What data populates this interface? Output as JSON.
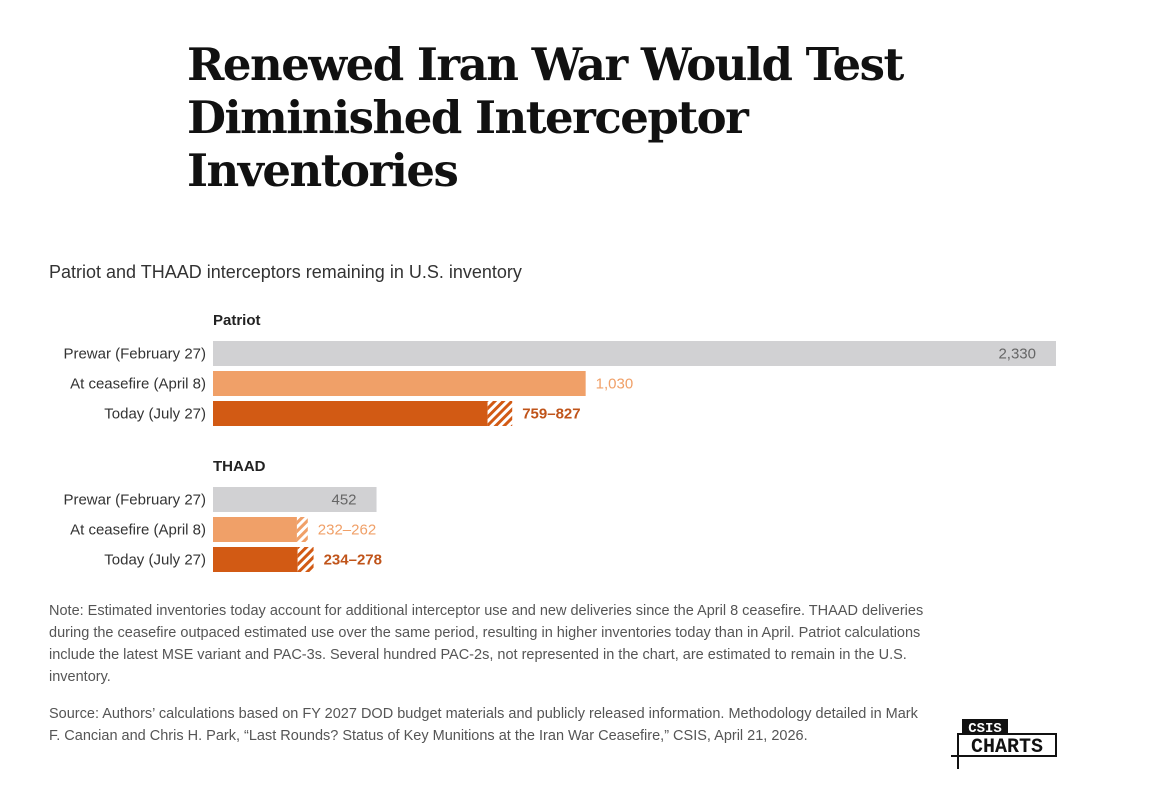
{
  "title": "Renewed Iran War Would Test Diminished Interceptor Inventories",
  "subtitle": "Patriot and THAAD interceptors remaining in U.S. inventory",
  "colors": {
    "prewar": "#d1d1d3",
    "ceasefire": "#f0a068",
    "today": "#d25a14",
    "prewar_label": "#666666",
    "ceasefire_label": "#f0a068",
    "today_label": "#c0541a"
  },
  "chart_data": {
    "type": "bar",
    "orientation": "horizontal",
    "groups": [
      {
        "name": "Patriot",
        "bars": [
          {
            "category": "Prewar (February 27)",
            "low": 2330,
            "high": 2330,
            "label": "2,330"
          },
          {
            "category": "At ceasefire (April 8)",
            "low": 1030,
            "high": 1030,
            "label": "1,030"
          },
          {
            "category": "Today (July 27)",
            "low": 759,
            "high": 827,
            "label": "759–827"
          }
        ]
      },
      {
        "name": "THAAD",
        "bars": [
          {
            "category": "Prewar (February 27)",
            "low": 452,
            "high": 452,
            "label": "452"
          },
          {
            "category": "At ceasefire (April 8)",
            "low": 232,
            "high": 262,
            "label": "232–262"
          },
          {
            "category": "Today (July 27)",
            "low": 234,
            "high": 278,
            "label": "234–278"
          }
        ]
      }
    ],
    "series_order": [
      "prewar",
      "ceasefire",
      "today"
    ],
    "range_style": "hatched",
    "xlim": [
      0,
      2330
    ]
  },
  "note": "Note: Estimated inventories today account for additional interceptor use and new deliveries since the April 8 ceasefire. THAAD deliveries during the ceasefire outpaced estimated use over the same period, resulting in higher inventories today than in April. Patriot calculations include the latest MSE variant and PAC-3s. Several hundred PAC-2s, not represented in the chart, are estimated to remain in the U.S. inventory.",
  "source": "Source: Authors’ calculations based on FY 2027 DOD budget materials and publicly released information. Methodology detailed in Mark F. Cancian and Chris H. Park, “Last Rounds? Status of Key Munitions at the Iran War Ceasefire,” CSIS, April 21, 2026.",
  "logo": {
    "top": "CSIS",
    "bottom": "CHARTS"
  }
}
